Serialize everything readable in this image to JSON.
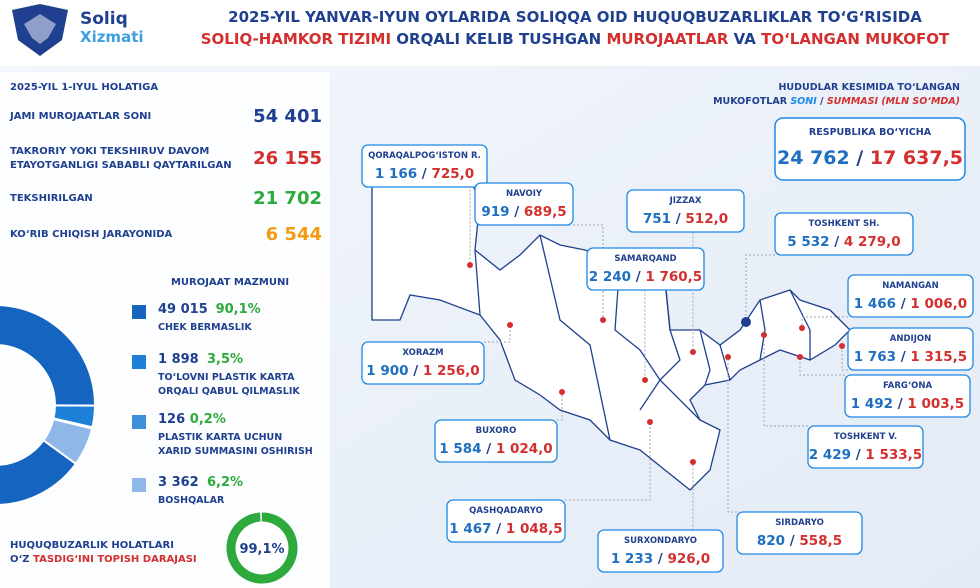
{
  "header": {
    "logo_line1": "Soliq",
    "logo_line2": "Xizmati",
    "title_line1": "2025-YIL YANVAR-IYUN OYLARIDA SOLIQQA OID HUQUQBUZARLIKLAR TO‘G‘RISIDA",
    "title_line2": [
      "SOLIQ-HAMKOR TIZIMI",
      " ORQALI KELIB TUSHGAN ",
      "MUROJAATLAR",
      " VA ",
      "TO‘LANGAN MUKOFOT"
    ]
  },
  "summary": {
    "date": "2025-YIL 1-IYUL HOLATIGA",
    "rows": [
      {
        "label": [
          "JAMI MUROJAATLAR SONI"
        ],
        "value": "54 401"
      },
      {
        "label": [
          "TAKRORIY YOKI TEKSHIRUV DAVOM",
          "ETAYOTGANLIGI SABABLI QAYTARILGAN"
        ],
        "value": "26 155"
      },
      {
        "label": [
          "TEKSHIRILGAN"
        ],
        "value": "21 702"
      },
      {
        "label": [
          "KO‘RIB CHIQISH JARAYONIDA"
        ],
        "value": "6 544"
      }
    ]
  },
  "topics": {
    "title": "MUROJAAT MAZMUNI",
    "items": [
      {
        "count": "49 015",
        "percent": 90.1,
        "percent_label": "90,1%",
        "label": [
          "CHEK BERMASLIK"
        ]
      },
      {
        "count": "1 898",
        "percent": 3.5,
        "percent_label": "3,5%",
        "label": [
          "TO‘LOVNI PLASTIK KARTA",
          "ORQALI QABUL QILMASLIK"
        ]
      },
      {
        "count": "126",
        "percent": 0.2,
        "percent_label": "0,2%",
        "label": [
          "PLASTIK KARTA UCHUN",
          "XARID SUMMASINI OSHIRISH"
        ]
      },
      {
        "count": "3 362",
        "percent": 6.2,
        "percent_label": "6,2%",
        "label": [
          "BOSHQALAR"
        ]
      }
    ]
  },
  "confirmation": {
    "line1": "HUQUQBUZARLIK HOLATLARI",
    "line2": [
      "O‘Z ",
      "TASDIG‘INI TOPISH DARAJASI"
    ],
    "percent": 99.1,
    "percent_label": "99,1%"
  },
  "map": {
    "legend_line1": "HUDUDLAR KESIMIDA TO‘LANGAN",
    "legend_line2": [
      "MUKOFOTLAR ",
      "SONI",
      " / ",
      "SUMMASI (MLN SO‘MDA)"
    ],
    "republic": {
      "name": "RESPUBLIKA BO‘YICHA",
      "count": "24 762",
      "sum": "17 637,5"
    },
    "regions": [
      {
        "name": "QORAQALPOG‘ISTON R.",
        "count": "1 166",
        "sum": "725,0"
      },
      {
        "name": "NAVOIY",
        "count": "919",
        "sum": "689,5"
      },
      {
        "name": "JIZZAX",
        "count": "751",
        "sum": "512,0"
      },
      {
        "name": "SAMARQAND",
        "count": "2 240",
        "sum": "1 760,5"
      },
      {
        "name": "TOSHKENT SH.",
        "count": "5 532",
        "sum": "4 279,0"
      },
      {
        "name": "NAMANGAN",
        "count": "1 466",
        "sum": "1 006,0"
      },
      {
        "name": "ANDIJON",
        "count": "1 763",
        "sum": "1 315,5"
      },
      {
        "name": "FARG‘ONA",
        "count": "1 492",
        "sum": "1 003,5"
      },
      {
        "name": "TOSHKENT V.",
        "count": "2 429",
        "sum": "1 533,5"
      },
      {
        "name": "SIRDARYO",
        "count": "820",
        "sum": "558,5"
      },
      {
        "name": "SURXONDARYO",
        "count": "1 233",
        "sum": "926,0"
      },
      {
        "name": "QASHQADARYO",
        "count": "1 467",
        "sum": "1 048,5"
      },
      {
        "name": "BUXORO",
        "count": "1 584",
        "sum": "1 024,0"
      },
      {
        "name": "XORAZM",
        "count": "1 900",
        "sum": "1 256,0"
      }
    ]
  }
}
